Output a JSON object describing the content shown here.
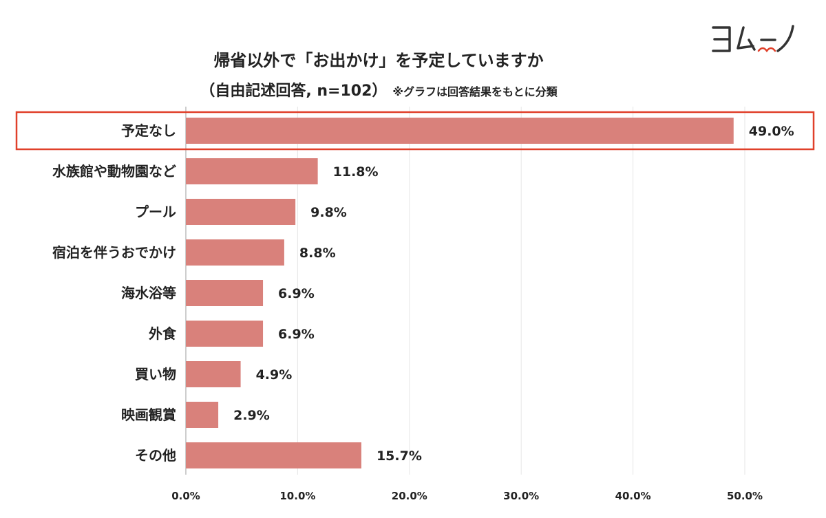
{
  "title": "帰省以外で「お出かけ」を予定していますか",
  "subtitle": "（自由記述回答, n=102）",
  "note": "※グラフは回答結果をもとに分類",
  "logo_text": "ヨムーノ",
  "colors": {
    "bar": "#d9817b",
    "highlight": "#e0402a",
    "grid": "#e6e6e6",
    "text": "#222222"
  },
  "chart_data": {
    "type": "bar",
    "orientation": "horizontal",
    "categories": [
      "予定なし",
      "水族館や動物園など",
      "プール",
      "宿泊を伴うおでかけ",
      "海水浴等",
      "外食",
      "買い物",
      "映画観賞",
      "その他"
    ],
    "values": [
      49.0,
      11.8,
      9.8,
      8.8,
      6.9,
      6.9,
      4.9,
      2.9,
      15.7
    ],
    "value_labels": [
      "49.0%",
      "11.8%",
      "9.8%",
      "8.8%",
      "6.9%",
      "6.9%",
      "4.9%",
      "2.9%",
      "15.7%"
    ],
    "xlim": [
      0,
      50
    ],
    "xticks": [
      "0.0%",
      "10.0%",
      "20.0%",
      "30.0%",
      "40.0%",
      "50.0%"
    ],
    "grid": true,
    "highlighted_category": "予定なし"
  }
}
